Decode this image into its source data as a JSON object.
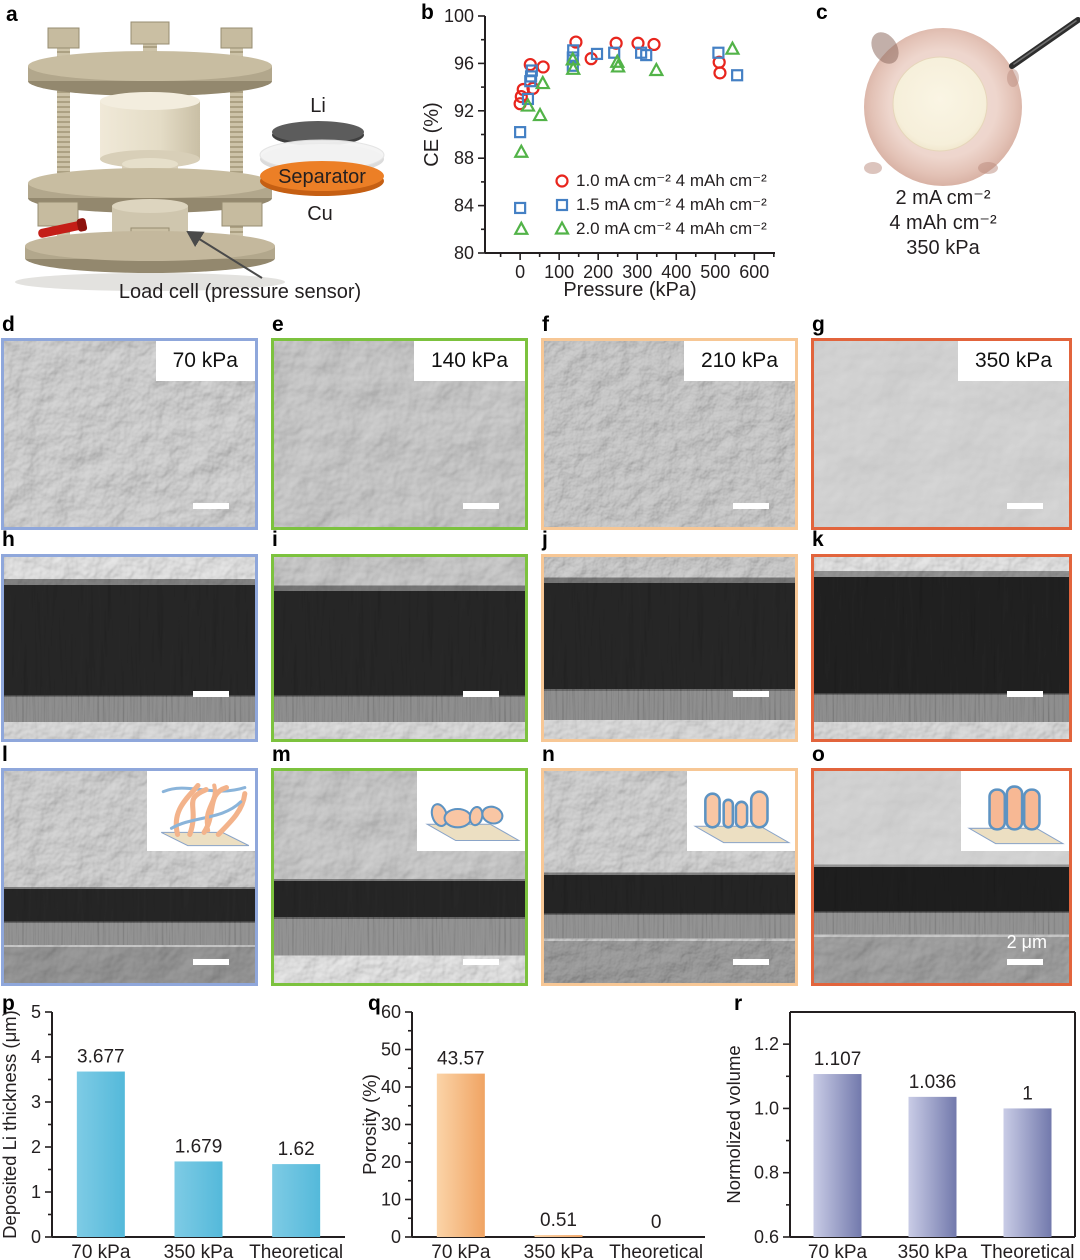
{
  "panels": {
    "a": {
      "letter": "a",
      "li_label": "Li",
      "separator_label": "Separator",
      "cu_label": "Cu",
      "caption": "Load cell (pressure sensor)"
    },
    "b": {
      "letter": "b"
    },
    "c": {
      "letter": "c",
      "lines": [
        "2 mA cm⁻²",
        "4 mAh cm⁻²",
        "350 kPa"
      ]
    },
    "sem_top": [
      {
        "letter": "d",
        "pressure": "70 kPa",
        "border": "#8FA7DB"
      },
      {
        "letter": "e",
        "pressure": "140 kPa",
        "border": "#7CC23E"
      },
      {
        "letter": "f",
        "pressure": "210 kPa",
        "border": "#F7C795"
      },
      {
        "letter": "g",
        "pressure": "350 kPa",
        "border": "#E2643C"
      }
    ],
    "sem_cross": [
      {
        "letter": "h",
        "border": "#8FA7DB"
      },
      {
        "letter": "i",
        "border": "#7CC23E"
      },
      {
        "letter": "j",
        "border": "#F7C795"
      },
      {
        "letter": "k",
        "border": "#E2643C"
      }
    ],
    "sem_tilt": [
      {
        "letter": "l",
        "border": "#8FA7DB"
      },
      {
        "letter": "m",
        "border": "#7CC23E"
      },
      {
        "letter": "n",
        "border": "#F7C795"
      },
      {
        "letter": "o",
        "border": "#E2643C",
        "scale_label": "2 μm"
      }
    ],
    "p_letter": "p",
    "q_letter": "q",
    "r_letter": "r"
  },
  "chart_data": [
    {
      "id": "b",
      "type": "scatter",
      "xlabel": "Pressure (kPa)",
      "ylabel": "CE (%)",
      "xlim": [
        -90,
        653
      ],
      "ylim": [
        80,
        100
      ],
      "xticks": [
        0,
        100,
        200,
        300,
        400,
        500,
        600
      ],
      "yticks": [
        80,
        84,
        88,
        92,
        96,
        100
      ],
      "legend_position": "lower right",
      "series": [
        {
          "name": "1.0 mA cm⁻² 4 mAh cm⁻²",
          "marker": "circle",
          "color": "#E8251D",
          "points": [
            [
              0,
              92.6
            ],
            [
              3,
              93.2
            ],
            [
              8,
              93.8
            ],
            [
              26,
              95.9
            ],
            [
              33,
              93.9
            ],
            [
              59,
              95.7
            ],
            [
              143,
              97.8
            ],
            [
              182,
              96.4
            ],
            [
              246,
              97.7
            ],
            [
              302,
              97.7
            ],
            [
              343,
              97.6
            ],
            [
              510,
              96.1
            ],
            [
              512,
              95.2
            ]
          ]
        },
        {
          "name": "1.5 mA cm⁻² 4 mAh cm⁻²",
          "marker": "square",
          "color": "#4480C4",
          "points": [
            [
              0,
              83.8
            ],
            [
              0,
              90.2
            ],
            [
              20,
              93.0
            ],
            [
              26,
              94.5
            ],
            [
              28,
              94.9
            ],
            [
              30,
              95.4
            ],
            [
              135,
              95.8
            ],
            [
              135,
              96.5
            ],
            [
              136,
              97.1
            ],
            [
              197,
              96.8
            ],
            [
              241,
              96.9
            ],
            [
              310,
              96.9
            ],
            [
              323,
              96.7
            ],
            [
              508,
              96.9
            ],
            [
              556,
              95.0
            ]
          ]
        },
        {
          "name": "2.0 mA cm⁻² 4 mAh cm⁻²",
          "marker": "triangle",
          "color": "#52B348",
          "points": [
            [
              3,
              82.0
            ],
            [
              3,
              88.5
            ],
            [
              20,
              92.4
            ],
            [
              51,
              91.6
            ],
            [
              58,
              94.3
            ],
            [
              135,
              96.3
            ],
            [
              136,
              95.5
            ],
            [
              249,
              96.1
            ],
            [
              251,
              95.7
            ],
            [
              349,
              95.4
            ],
            [
              544,
              97.2
            ]
          ]
        }
      ]
    },
    {
      "id": "p",
      "type": "bar",
      "ylabel": "Deposited Li thickness (μm)",
      "categories": [
        "70 kPa",
        "350 kPa",
        "Theoretical"
      ],
      "values": [
        3.677,
        1.679,
        1.62
      ],
      "value_labels": [
        "3.677",
        "1.679",
        "1.62"
      ],
      "ylim": [
        0,
        5
      ],
      "yticks": [
        0,
        1,
        2,
        3,
        4,
        5
      ],
      "bar_color": [
        "#7ECBE5",
        "#54B9DA"
      ]
    },
    {
      "id": "q",
      "type": "bar",
      "ylabel": "Porosity (%)",
      "categories": [
        "70 kPa",
        "350 kPa",
        "Theoretical"
      ],
      "values": [
        43.57,
        0.51,
        0
      ],
      "value_labels": [
        "43.57",
        "0.51",
        "0"
      ],
      "ylim": [
        0,
        60
      ],
      "yticks": [
        0,
        10,
        20,
        30,
        40,
        50,
        60
      ],
      "bar_color": [
        "#FBD4A8",
        "#F0A463"
      ]
    },
    {
      "id": "r",
      "type": "bar",
      "ylabel": "Normolized volume",
      "categories": [
        "70 kPa",
        "350 kPa",
        "Theoretical"
      ],
      "values": [
        1.107,
        1.036,
        1
      ],
      "value_labels": [
        "1.107",
        "1.036",
        "1"
      ],
      "ylim": [
        0.6,
        1.3
      ],
      "baseline": 0.6,
      "yticks": [
        0.6,
        0.8,
        1.0,
        1.2
      ],
      "ytick_labels": [
        "0.6",
        "0.8",
        "1.0",
        "1.2"
      ],
      "bar_color": [
        "#C9CCE6",
        "#7279AC"
      ],
      "boxed": true
    }
  ]
}
